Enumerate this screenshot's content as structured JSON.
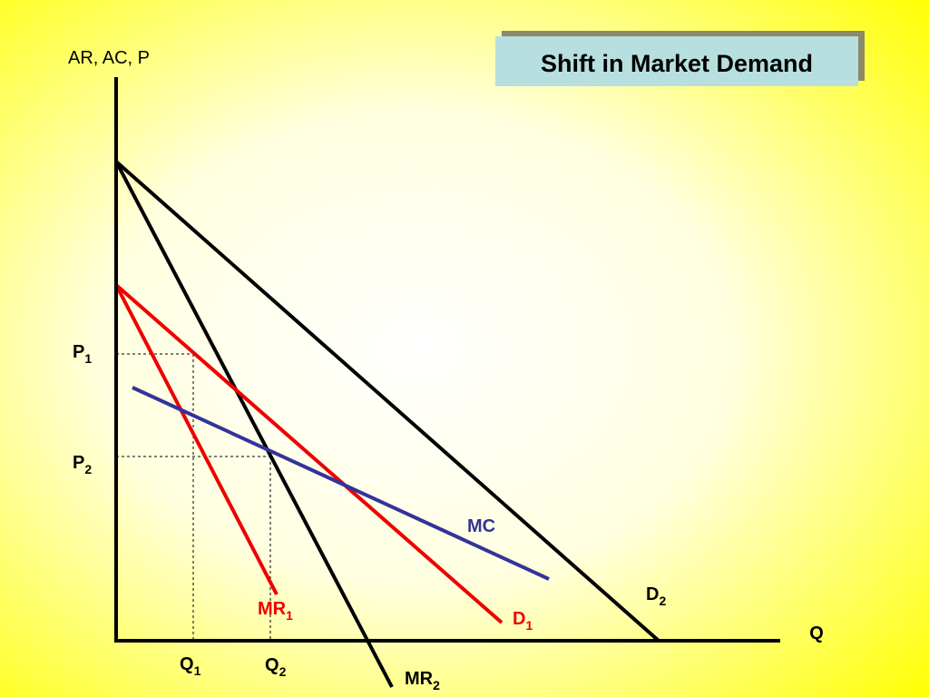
{
  "title": "Shift in Market Demand",
  "axes": {
    "y_label": "AR, AC, P",
    "x_label": "Q"
  },
  "labels": {
    "p1": {
      "main": "P",
      "sub": "1"
    },
    "p2": {
      "main": "P",
      "sub": "2"
    },
    "q1": {
      "main": "Q",
      "sub": "1"
    },
    "q2": {
      "main": "Q",
      "sub": "2"
    },
    "mc": {
      "main": "MC"
    },
    "d1": {
      "main": "D",
      "sub": "1"
    },
    "d2": {
      "main": "D",
      "sub": "2"
    },
    "mr1": {
      "main": "MR",
      "sub": "1"
    },
    "mr2": {
      "main": "MR",
      "sub": "2"
    }
  }
}
